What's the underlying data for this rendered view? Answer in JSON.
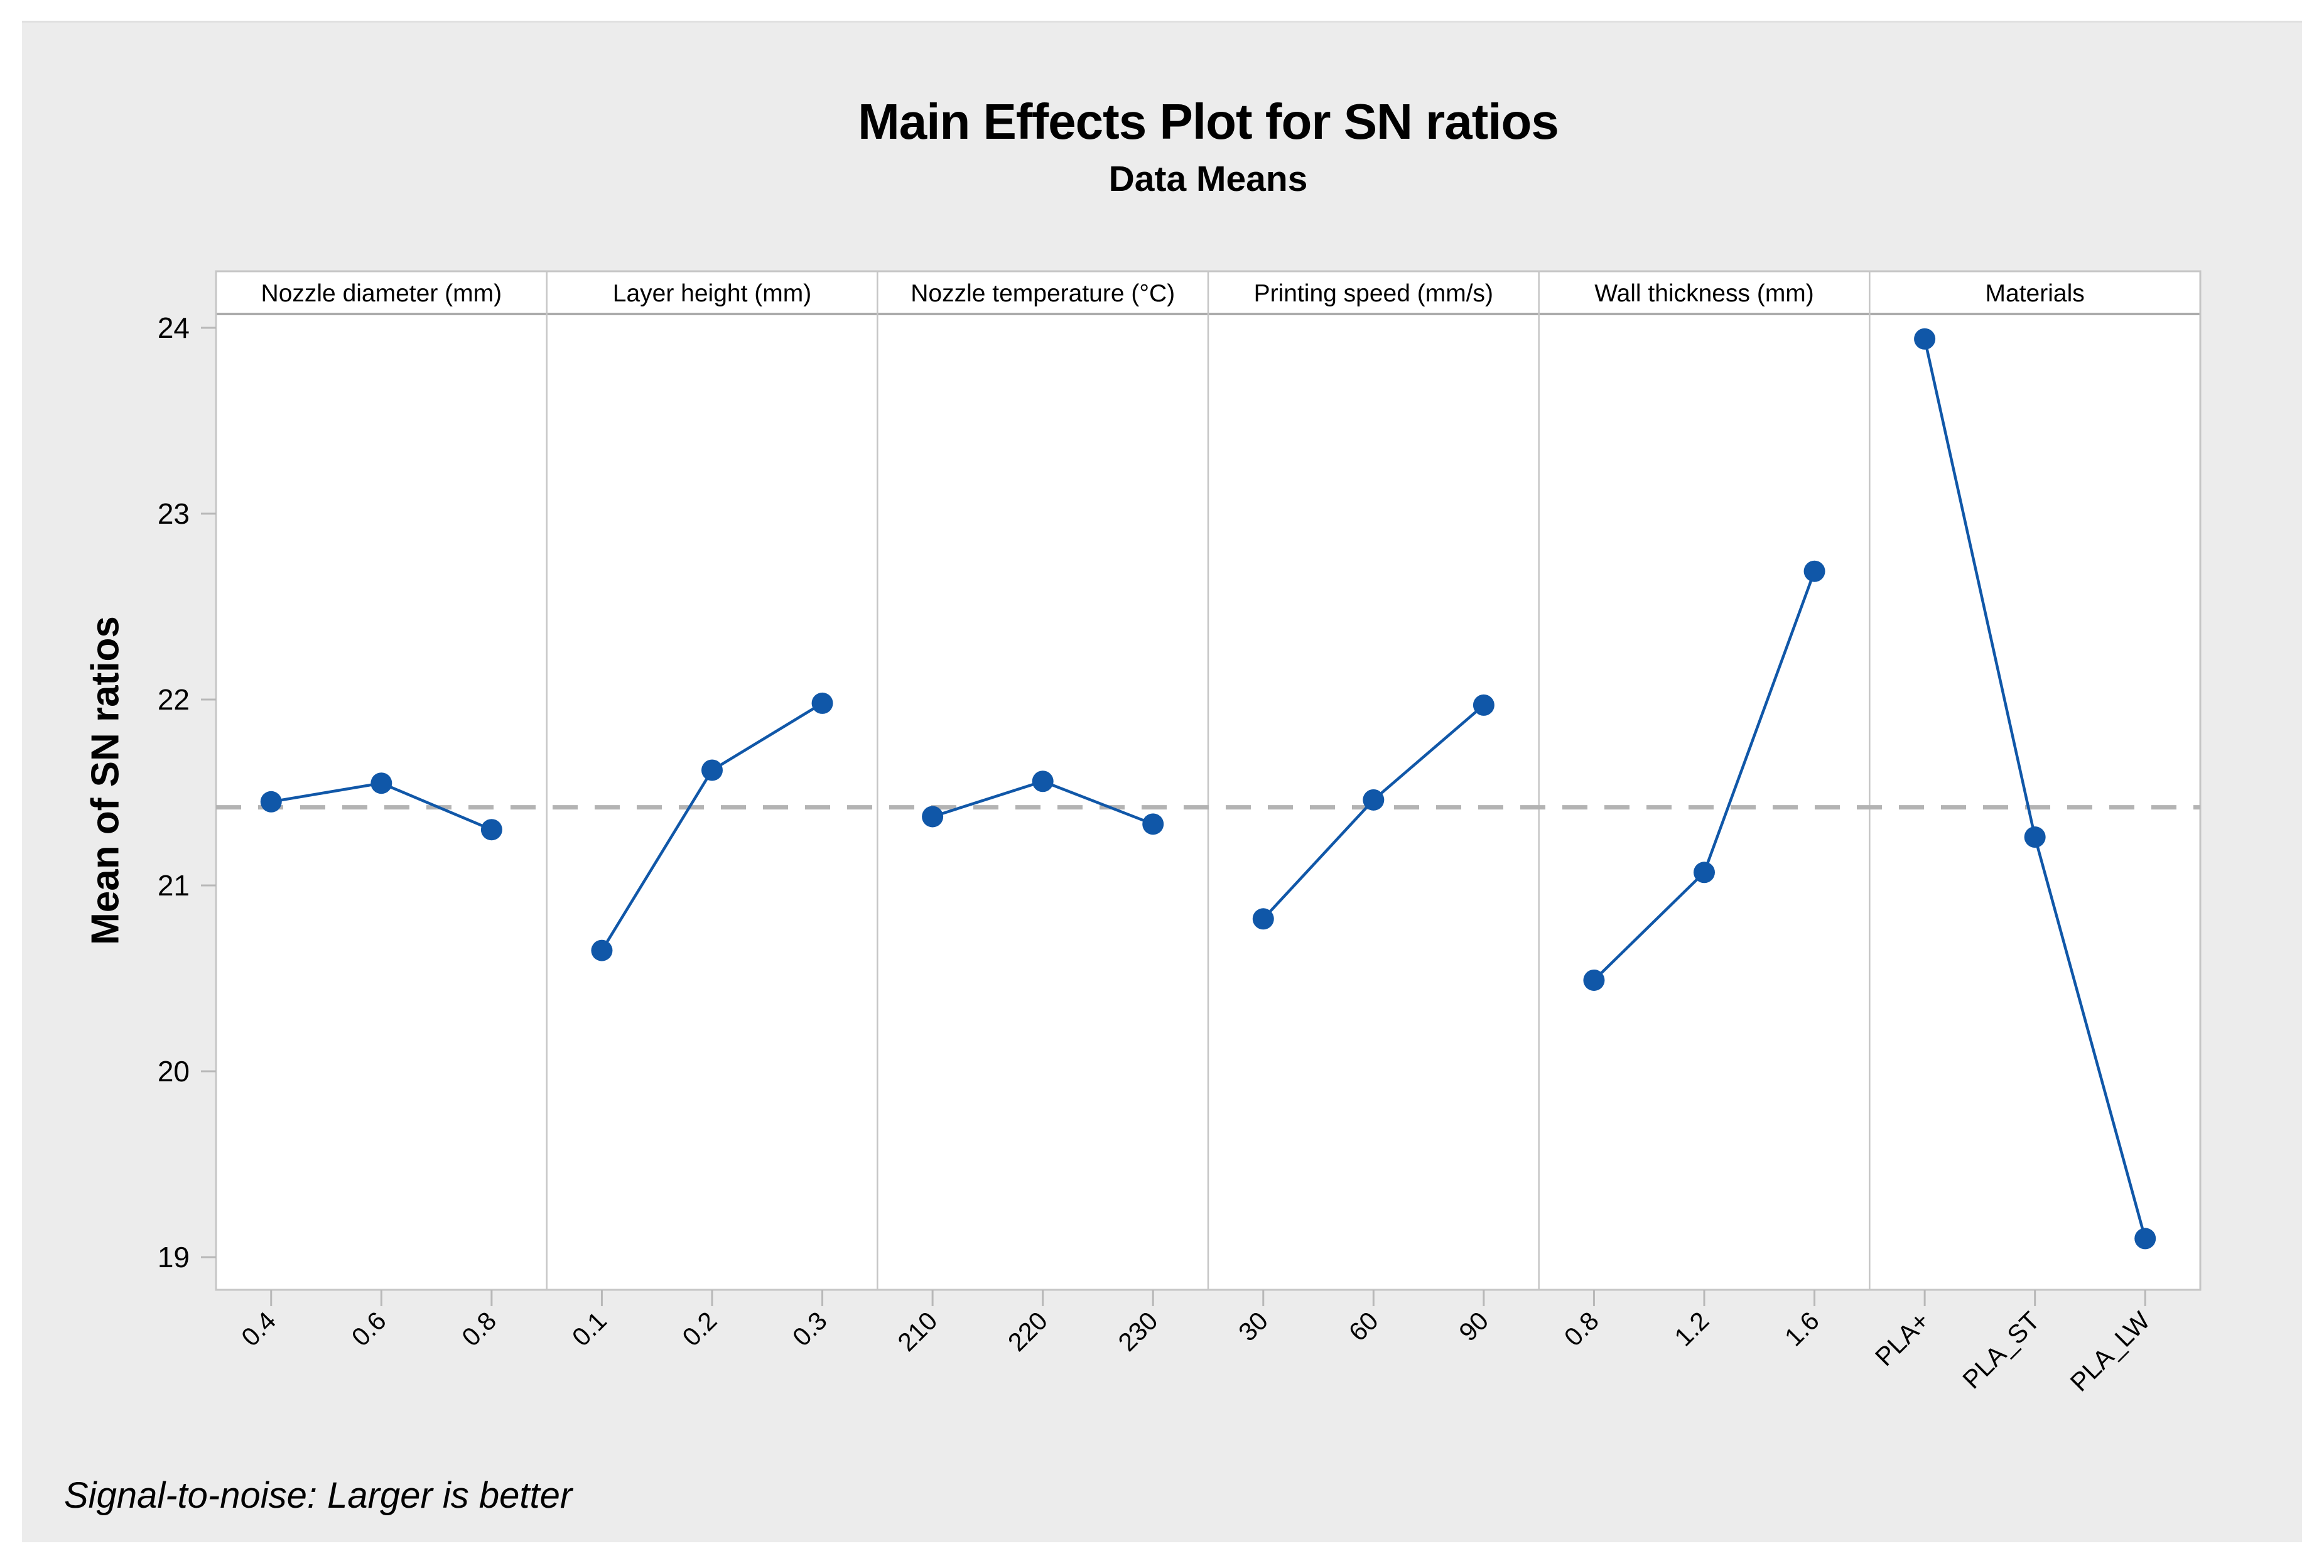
{
  "title": "Main Effects Plot for SN ratios",
  "subtitle": "Data Means",
  "y_axis_title": "Mean of SN ratios",
  "footer_note": "Signal-to-noise: Larger is better",
  "colors": {
    "card_bg": "#ececec",
    "plot_bg": "#ffffff",
    "panel_border": "#c6c6c6",
    "header_underline": "#ababab",
    "tick": "#b8b8b8",
    "mean_line": "#b3b3b3",
    "series": "#1057a8",
    "text": "#000000"
  },
  "chart_data": {
    "type": "line",
    "title": "Main Effects Plot for SN ratios",
    "subtitle": "Data Means",
    "ylabel": "Mean of SN ratios",
    "footnote": "Signal-to-noise: Larger is better",
    "grid": "off",
    "legend": "none",
    "y_axis": {
      "ticks": [
        24,
        23,
        22,
        21,
        20,
        19
      ],
      "min": 18.8,
      "max": 24.1
    },
    "overall_mean_reference": 21.42,
    "panels": [
      {
        "factor": "Nozzle diameter  (mm)",
        "levels": [
          "0.4",
          "0.6",
          "0.8"
        ],
        "means": [
          21.45,
          21.55,
          21.3
        ]
      },
      {
        "factor": "Layer height (mm)",
        "levels": [
          "0.1",
          "0.2",
          "0.3"
        ],
        "means": [
          20.65,
          21.62,
          21.98
        ]
      },
      {
        "factor": "Nozzle temperature (°C)",
        "levels": [
          "210",
          "220",
          "230"
        ],
        "means": [
          21.37,
          21.56,
          21.33
        ]
      },
      {
        "factor": "Printing speed (mm/s)",
        "levels": [
          "30",
          "60",
          "90"
        ],
        "means": [
          20.82,
          21.46,
          21.97
        ]
      },
      {
        "factor": "Wall thickness (mm)",
        "levels": [
          "0.8",
          "1.2",
          "1.6"
        ],
        "means": [
          20.49,
          21.07,
          22.69
        ]
      },
      {
        "factor": "Materials",
        "levels": [
          "PLA+",
          "PLA_ST",
          "PLA_LW"
        ],
        "means": [
          23.94,
          21.26,
          19.1
        ]
      }
    ]
  }
}
